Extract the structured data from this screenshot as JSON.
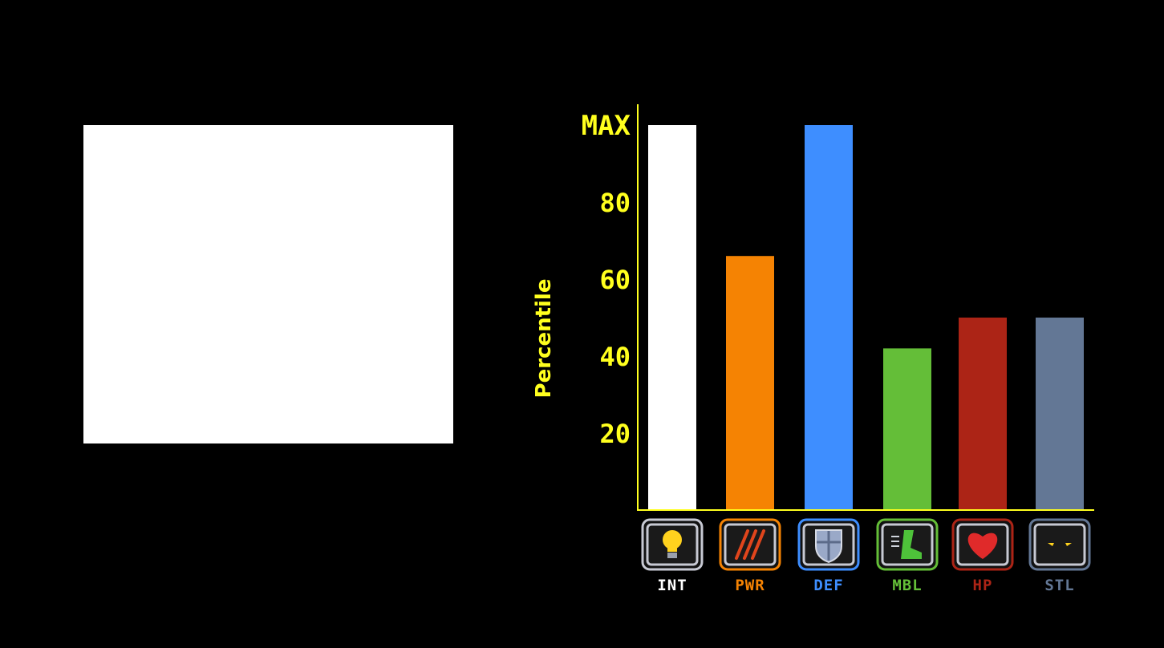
{
  "portrait": {
    "color": "#ffffff"
  },
  "chart_data": {
    "type": "bar",
    "title": "",
    "ylabel": "Percentile",
    "xlabel": "",
    "ylim": [
      0,
      100
    ],
    "yticks": [
      {
        "value": 20,
        "label": "20"
      },
      {
        "value": 40,
        "label": "40"
      },
      {
        "value": 60,
        "label": "60"
      },
      {
        "value": 80,
        "label": "80"
      },
      {
        "value": 100,
        "label": "MAX"
      }
    ],
    "grid": false,
    "axis_color": "#ffff1e",
    "categories": [
      "INT",
      "PWR",
      "DEF",
      "MBL",
      "HP",
      "STL"
    ],
    "values": [
      100,
      66,
      100,
      42,
      50,
      50
    ],
    "colors": [
      "#ffffff",
      "#f58303",
      "#3e8eff",
      "#64be38",
      "#ac2416",
      "#637795"
    ],
    "icons": [
      "lightbulb-icon",
      "claw-scratch-icon",
      "shield-icon",
      "boot-icon",
      "heart-icon",
      "eyes-icon"
    ]
  }
}
